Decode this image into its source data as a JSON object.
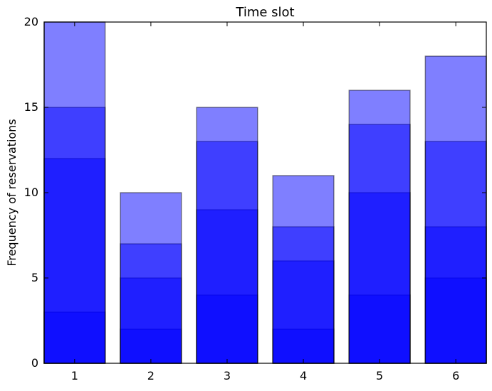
{
  "chart_data": {
    "type": "bar",
    "title": "Time slot",
    "xlabel": "",
    "ylabel": "Frequency of reservations",
    "categories": [
      "1",
      "2",
      "3",
      "4",
      "5",
      "6"
    ],
    "series": [
      {
        "values": [
          3,
          2,
          4,
          2,
          4,
          5
        ]
      },
      {
        "values": [
          12,
          5,
          9,
          6,
          10,
          8
        ]
      },
      {
        "values": [
          15,
          7,
          13,
          8,
          14,
          13
        ]
      },
      {
        "values": [
          20,
          10,
          15,
          11,
          16,
          18
        ]
      }
    ],
    "overlap": "overlaid",
    "series_color": "#0000ff",
    "series_alpha": 0.5,
    "ylim": [
      0,
      20
    ],
    "yticks": [
      0,
      5,
      10,
      15,
      20
    ],
    "grid": false,
    "legend": "none"
  }
}
